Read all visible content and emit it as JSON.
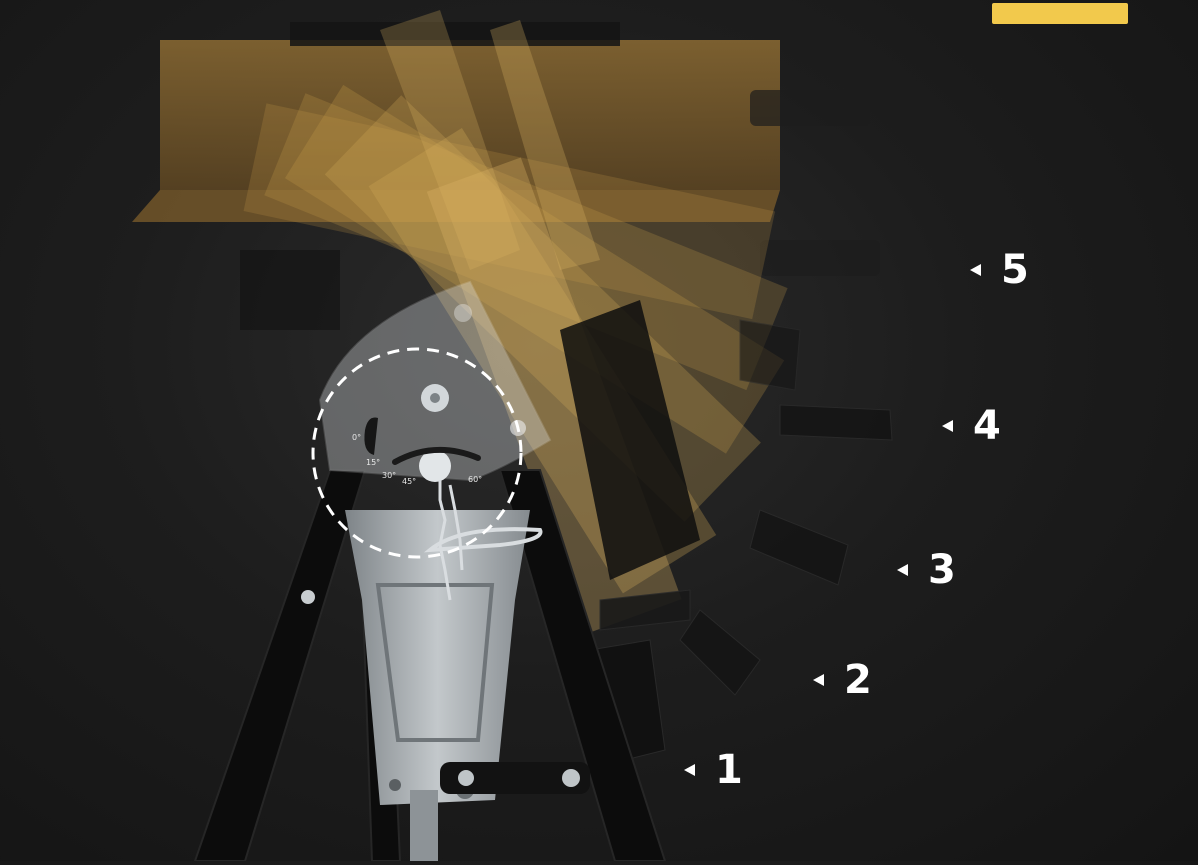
{
  "colors": {
    "background": "#1a1a1a",
    "accent": "#f2c94c",
    "wood": "#c79d4b",
    "metal": "#9aa0a4",
    "frame": "#0d0d0d"
  },
  "dial": {
    "angle_marks": [
      "0°",
      "15°",
      "30°",
      "45°",
      "60°"
    ]
  },
  "positions": [
    {
      "label": "1"
    },
    {
      "label": "2"
    },
    {
      "label": "3"
    },
    {
      "label": "4"
    },
    {
      "label": "5"
    }
  ]
}
